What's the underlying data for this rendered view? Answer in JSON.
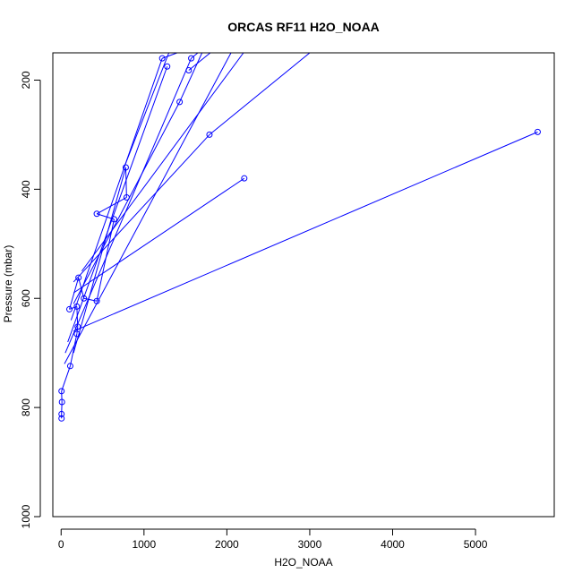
{
  "chart_data": {
    "type": "scatter",
    "title": "ORCAS RF11 H2O_NOAA",
    "xlabel": "H2O_NOAA",
    "ylabel": "Pressure (mbar)",
    "xlim": [
      -100,
      5950
    ],
    "ylim": [
      1000,
      150
    ],
    "y_reversed": true,
    "xticks": [
      0,
      1000,
      2000,
      3000,
      4000,
      5000
    ],
    "yticks": [
      200,
      400,
      600,
      800,
      1000
    ],
    "grid": false,
    "legend": "none",
    "color": "#0000ff",
    "series": [
      {
        "values": [
          [
            5,
            820
          ],
          [
            5,
            812
          ],
          [
            10,
            790
          ],
          [
            5,
            770
          ],
          [
            110,
            724
          ],
          [
            190,
            665
          ],
          [
            200,
            652
          ],
          [
            190,
            615
          ],
          [
            100,
            620
          ],
          [
            210,
            562
          ],
          [
            275,
            600
          ],
          [
            430,
            605
          ],
          [
            640,
            455
          ],
          [
            430,
            445
          ],
          [
            790,
            415
          ],
          [
            780,
            360
          ],
          [
            5750,
            295
          ],
          [
            1790,
            300
          ],
          [
            1430,
            240
          ],
          [
            1220,
            160
          ],
          [
            1280,
            175
          ],
          [
            1570,
            160
          ],
          [
            1540,
            182
          ],
          [
            2210,
            380
          ]
        ]
      }
    ],
    "segments": [
      [
        [
          5,
          820
        ],
        [
          5,
          812
        ]
      ],
      [
        [
          5,
          812
        ],
        [
          10,
          790
        ]
      ],
      [
        [
          10,
          790
        ],
        [
          5,
          770
        ]
      ],
      [
        [
          5,
          770
        ],
        [
          110,
          724
        ]
      ],
      [
        [
          110,
          724
        ],
        [
          190,
          665
        ]
      ],
      [
        [
          190,
          665
        ],
        [
          200,
          652
        ]
      ],
      [
        [
          200,
          652
        ],
        [
          190,
          615
        ]
      ],
      [
        [
          190,
          615
        ],
        [
          100,
          620
        ]
      ],
      [
        [
          100,
          620
        ],
        [
          210,
          562
        ]
      ],
      [
        [
          210,
          562
        ],
        [
          275,
          600
        ]
      ],
      [
        [
          275,
          600
        ],
        [
          430,
          605
        ]
      ],
      [
        [
          430,
          605
        ],
        [
          640,
          455
        ]
      ],
      [
        [
          640,
          455
        ],
        [
          430,
          445
        ]
      ],
      [
        [
          430,
          445
        ],
        [
          790,
          415
        ]
      ],
      [
        [
          790,
          415
        ],
        [
          780,
          360
        ]
      ],
      [
        [
          780,
          360
        ],
        [
          150,
          700
        ]
      ],
      [
        [
          150,
          660
        ],
        [
          5750,
          295
        ]
      ],
      [
        [
          150,
          570
        ],
        [
          1790,
          300
        ]
      ],
      [
        [
          1790,
          300
        ],
        [
          3000,
          150
        ]
      ],
      [
        [
          150,
          590
        ],
        [
          2210,
          380
        ]
      ],
      [
        [
          150,
          610
        ],
        [
          1430,
          240
        ]
      ],
      [
        [
          1430,
          240
        ],
        [
          1700,
          150
        ]
      ],
      [
        [
          120,
          640
        ],
        [
          1220,
          160
        ]
      ],
      [
        [
          1220,
          160
        ],
        [
          1400,
          150
        ]
      ],
      [
        [
          80,
          680
        ],
        [
          1280,
          175
        ]
      ],
      [
        [
          40,
          720
        ],
        [
          2050,
          150
        ]
      ],
      [
        [
          50,
          700
        ],
        [
          1570,
          160
        ]
      ],
      [
        [
          1570,
          160
        ],
        [
          1650,
          150
        ]
      ],
      [
        [
          1540,
          182
        ],
        [
          1800,
          150
        ]
      ],
      [
        [
          250,
          550
        ],
        [
          2200,
          150
        ]
      ],
      [
        [
          760,
          360
        ],
        [
          1300,
          150
        ]
      ]
    ]
  }
}
